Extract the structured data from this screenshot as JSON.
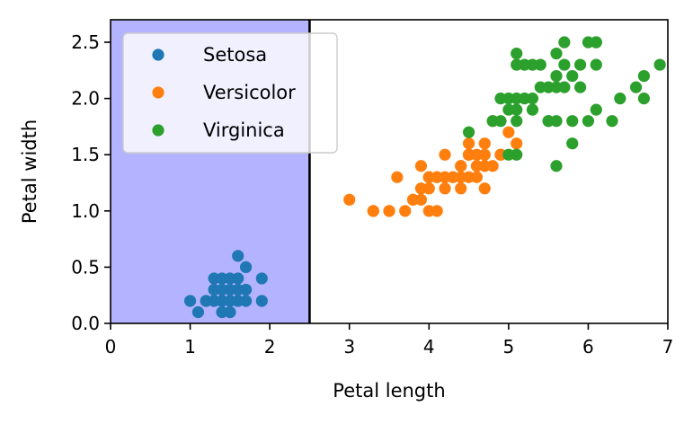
{
  "chart_data": {
    "type": "scatter",
    "xlabel": "Petal length",
    "ylabel": "Petal width",
    "xlim": [
      0,
      7
    ],
    "ylim": [
      0,
      2.7
    ],
    "xticks": [
      "0",
      "1",
      "2",
      "3",
      "4",
      "5",
      "6",
      "7"
    ],
    "yticks": [
      "0.0",
      "0.5",
      "1.0",
      "1.5",
      "2.0",
      "2.5"
    ],
    "grid": false,
    "legend_position": "upper-left",
    "shaded_region": {
      "x_from": 0,
      "x_to": 2.5,
      "color": "#b3b3ff"
    },
    "decision_boundary_x": 2.5,
    "series": [
      {
        "name": "Setosa",
        "color": "#1f77b4",
        "points": [
          [
            1.4,
            0.2
          ],
          [
            1.3,
            0.2
          ],
          [
            1.5,
            0.2
          ],
          [
            1.4,
            0.4
          ],
          [
            1.5,
            0.1
          ],
          [
            1.6,
            0.2
          ],
          [
            1.4,
            0.3
          ],
          [
            1.1,
            0.1
          ],
          [
            1.2,
            0.2
          ],
          [
            1.5,
            0.4
          ],
          [
            1.3,
            0.4
          ],
          [
            1.7,
            0.3
          ],
          [
            1.7,
            0.2
          ],
          [
            1.5,
            0.3
          ],
          [
            1.0,
            0.2
          ],
          [
            1.7,
            0.5
          ],
          [
            1.9,
            0.2
          ],
          [
            1.6,
            0.4
          ],
          [
            1.4,
            0.1
          ],
          [
            1.6,
            0.6
          ],
          [
            1.3,
            0.3
          ],
          [
            1.9,
            0.4
          ],
          [
            1.6,
            0.3
          ],
          [
            1.2,
            0.2
          ],
          [
            1.5,
            0.2
          ],
          [
            1.4,
            0.2
          ],
          [
            1.3,
            0.2
          ],
          [
            1.6,
            0.2
          ],
          [
            1.5,
            0.1
          ],
          [
            1.4,
            0.3
          ]
        ]
      },
      {
        "name": "Versicolor",
        "color": "#ff7f0e",
        "points": [
          [
            4.7,
            1.4
          ],
          [
            4.5,
            1.5
          ],
          [
            4.9,
            1.5
          ],
          [
            4.0,
            1.3
          ],
          [
            4.6,
            1.5
          ],
          [
            4.5,
            1.3
          ],
          [
            4.7,
            1.6
          ],
          [
            3.3,
            1.0
          ],
          [
            4.6,
            1.3
          ],
          [
            3.9,
            1.4
          ],
          [
            3.5,
            1.0
          ],
          [
            4.2,
            1.5
          ],
          [
            4.0,
            1.0
          ],
          [
            4.7,
            1.4
          ],
          [
            3.6,
            1.3
          ],
          [
            4.4,
            1.4
          ],
          [
            4.5,
            1.5
          ],
          [
            4.1,
            1.0
          ],
          [
            4.5,
            1.5
          ],
          [
            3.9,
            1.1
          ],
          [
            4.8,
            1.8
          ],
          [
            4.0,
            1.3
          ],
          [
            4.9,
            1.5
          ],
          [
            4.7,
            1.2
          ],
          [
            4.3,
            1.3
          ],
          [
            4.4,
            1.4
          ],
          [
            4.8,
            1.4
          ],
          [
            5.0,
            1.7
          ],
          [
            4.5,
            1.5
          ],
          [
            3.5,
            1.0
          ],
          [
            3.8,
            1.1
          ],
          [
            3.7,
            1.0
          ],
          [
            3.9,
            1.2
          ],
          [
            5.1,
            1.6
          ],
          [
            4.5,
            1.5
          ],
          [
            4.5,
            1.6
          ],
          [
            4.7,
            1.5
          ],
          [
            4.4,
            1.3
          ],
          [
            4.1,
            1.3
          ],
          [
            4.0,
            1.3
          ],
          [
            4.4,
            1.2
          ],
          [
            4.6,
            1.4
          ],
          [
            4.0,
            1.2
          ],
          [
            3.3,
            1.0
          ],
          [
            4.2,
            1.3
          ],
          [
            4.2,
            1.2
          ],
          [
            4.3,
            1.3
          ],
          [
            3.0,
            1.1
          ],
          [
            4.1,
            1.3
          ],
          [
            3.8,
            1.1
          ],
          [
            4.9,
            1.5
          ]
        ]
      },
      {
        "name": "Virginica",
        "color": "#2ca02c",
        "points": [
          [
            6.0,
            2.5
          ],
          [
            5.1,
            1.9
          ],
          [
            5.9,
            2.1
          ],
          [
            5.6,
            1.8
          ],
          [
            5.8,
            2.2
          ],
          [
            6.6,
            2.1
          ],
          [
            4.5,
            1.7
          ],
          [
            6.3,
            1.8
          ],
          [
            5.8,
            1.8
          ],
          [
            6.1,
            2.5
          ],
          [
            5.1,
            2.0
          ],
          [
            5.3,
            1.9
          ],
          [
            5.5,
            2.1
          ],
          [
            5.0,
            2.0
          ],
          [
            5.1,
            2.4
          ],
          [
            5.3,
            2.3
          ],
          [
            5.5,
            1.8
          ],
          [
            6.7,
            2.2
          ],
          [
            6.9,
            2.3
          ],
          [
            5.0,
            1.5
          ],
          [
            5.7,
            2.3
          ],
          [
            4.9,
            2.0
          ],
          [
            6.7,
            2.0
          ],
          [
            4.9,
            1.8
          ],
          [
            5.7,
            2.1
          ],
          [
            6.0,
            1.8
          ],
          [
            4.8,
            1.8
          ],
          [
            5.8,
            1.6
          ],
          [
            6.1,
            1.9
          ],
          [
            6.4,
            2.0
          ],
          [
            5.6,
            2.2
          ],
          [
            5.1,
            1.5
          ],
          [
            5.6,
            1.4
          ],
          [
            6.1,
            2.3
          ],
          [
            5.6,
            2.4
          ],
          [
            5.5,
            1.8
          ],
          [
            5.4,
            2.1
          ],
          [
            5.1,
            2.3
          ],
          [
            5.9,
            2.3
          ],
          [
            5.7,
            2.5
          ],
          [
            5.2,
            2.3
          ],
          [
            5.0,
            1.9
          ],
          [
            5.2,
            2.0
          ],
          [
            5.4,
            2.3
          ],
          [
            5.1,
            1.8
          ],
          [
            6.1,
            2.5
          ],
          [
            5.6,
            2.1
          ],
          [
            5.3,
            2.0
          ]
        ]
      }
    ]
  }
}
